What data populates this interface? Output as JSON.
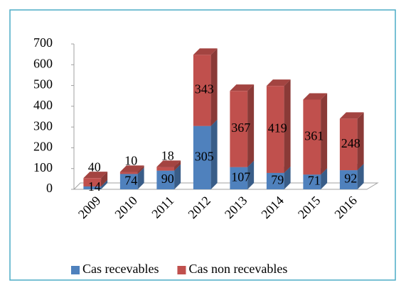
{
  "chart_data": {
    "type": "bar",
    "stacked": true,
    "three_d": true,
    "categories": [
      "2009",
      "2010",
      "2011",
      "2012",
      "2013",
      "2014",
      "2015",
      "2016"
    ],
    "series": [
      {
        "name": "Cas recevables",
        "color": "#4f81bd",
        "values": [
          14,
          74,
          90,
          305,
          107,
          79,
          71,
          92
        ]
      },
      {
        "name": "Cas non recevables",
        "color": "#c0504d",
        "values": [
          40,
          10,
          18,
          343,
          367,
          419,
          361,
          248
        ]
      }
    ],
    "ylim": [
      0,
      700
    ],
    "yticks": [
      0,
      100,
      200,
      300,
      400,
      500,
      600,
      700
    ],
    "legend": "bottom"
  }
}
